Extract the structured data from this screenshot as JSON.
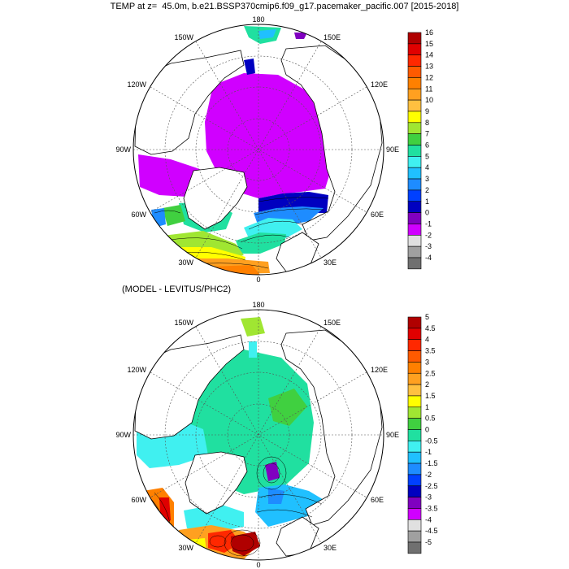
{
  "title": "TEMP at z=  45.0m, b.e21.BSSP370cmip6.f09_g17.pacemaker_pacific.007 [2015-2018]",
  "panels": [
    {
      "name": "model",
      "subtitle": "",
      "lon_labels": {
        "180": "180",
        "150W": "150W",
        "150E": "150E",
        "120W": "120W",
        "120E": "120E",
        "90W": "90W",
        "90E": "90E",
        "60W": "60W",
        "60E": "60E",
        "30W": "30W",
        "30E": "30E",
        "0": "0"
      },
      "colorbar": [
        "16",
        "15",
        "14",
        "13",
        "12",
        "11",
        "10",
        "9",
        "8",
        "7",
        "6",
        "5",
        "4",
        "3",
        "2",
        "1",
        "0",
        "-1",
        "-2",
        "-3",
        "-4"
      ],
      "colors": [
        "#b00000",
        "#e00000",
        "#ff2800",
        "#ff5a00",
        "#ff8000",
        "#ffa020",
        "#ffc040",
        "#ffff00",
        "#a0e632",
        "#40d040",
        "#20e0a0",
        "#40f0f0",
        "#20c0ff",
        "#1e8cff",
        "#0040ff",
        "#0000c0",
        "#8000c0",
        "#d000ff",
        "#e0e0e0",
        "#a0a0a0",
        "#707070"
      ]
    },
    {
      "name": "difference",
      "subtitle": "(MODEL - LEVITUS/PHC2)",
      "lon_labels": {
        "180": "180",
        "150W": "150W",
        "150E": "150E",
        "120W": "120W",
        "120E": "120E",
        "90W": "90W",
        "90E": "90E",
        "60W": "60W",
        "60E": "60E",
        "30W": "30W",
        "30E": "30E",
        "0": "0"
      },
      "colorbar": [
        "5",
        "4.5",
        "4",
        "3.5",
        "3",
        "2.5",
        "2",
        "1.5",
        "1",
        "0.5",
        "0",
        "-0.5",
        "-1",
        "-1.5",
        "-2",
        "-2.5",
        "-3",
        "-3.5",
        "-4",
        "-4.5",
        "-5"
      ],
      "colors": [
        "#b00000",
        "#e00000",
        "#ff2800",
        "#ff5a00",
        "#ff8000",
        "#ffa020",
        "#ffc040",
        "#ffff00",
        "#a0e632",
        "#40d040",
        "#20e0a0",
        "#40f0f0",
        "#20c0ff",
        "#1e8cff",
        "#0040ff",
        "#0000c0",
        "#8000c0",
        "#d000ff",
        "#e0e0e0",
        "#a0a0a0",
        "#707070"
      ]
    }
  ]
}
